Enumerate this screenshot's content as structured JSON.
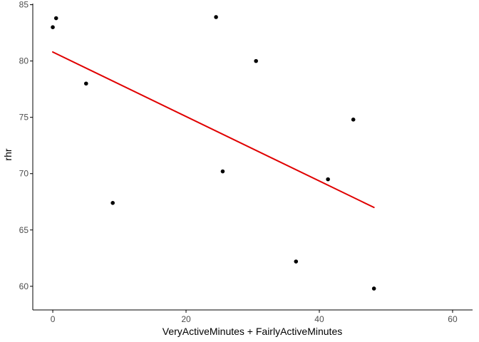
{
  "chart_data": {
    "type": "scatter",
    "xlabel": "VeryActiveMinutes + FairlyActiveMinutes",
    "ylabel": "rhr",
    "xlim": [
      -3,
      63
    ],
    "ylim": [
      57.9,
      85.1
    ],
    "x_ticks": [
      0,
      20,
      40,
      60
    ],
    "y_ticks": [
      60,
      65,
      70,
      75,
      80,
      85
    ],
    "grid": false,
    "legend": "none",
    "points": [
      {
        "x": 0.0,
        "y": 83.0
      },
      {
        "x": 0.5,
        "y": 83.8
      },
      {
        "x": 5.0,
        "y": 78.0
      },
      {
        "x": 9.0,
        "y": 67.4
      },
      {
        "x": 24.5,
        "y": 83.9
      },
      {
        "x": 25.5,
        "y": 70.2
      },
      {
        "x": 30.5,
        "y": 80.0
      },
      {
        "x": 36.5,
        "y": 62.2
      },
      {
        "x": 41.3,
        "y": 69.5
      },
      {
        "x": 45.1,
        "y": 74.8
      },
      {
        "x": 48.2,
        "y": 59.8
      }
    ],
    "trend_line": {
      "x": [
        0.0,
        48.2
      ],
      "y": [
        80.8,
        67.0
      ]
    },
    "colors": {
      "points": "#000000",
      "trend_line": "#e00000",
      "axis": "#000000",
      "tick_label": "#4d4d4d"
    }
  }
}
